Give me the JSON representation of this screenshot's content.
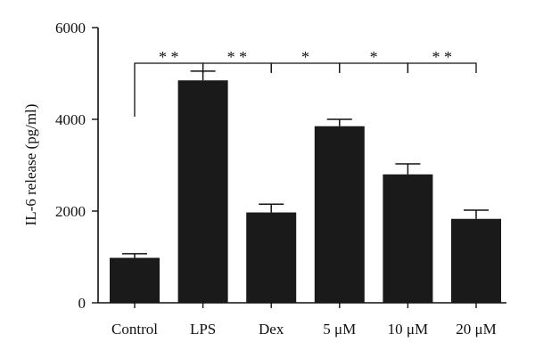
{
  "chart_data": {
    "type": "bar",
    "categories": [
      "Control",
      "LPS",
      "Dex",
      "5 μM",
      "10 μM",
      "20 μM"
    ],
    "values": [
      980,
      4850,
      1970,
      3850,
      2800,
      1830
    ],
    "errors": [
      90,
      200,
      180,
      150,
      230,
      190
    ],
    "ylabel": "IL-6 release (pg/ml)",
    "ylim": [
      0,
      6000
    ],
    "yticks": [
      0,
      2000,
      4000,
      6000
    ],
    "bar_color": "#1a1a1a",
    "significance": [
      {
        "from": "Control",
        "to": "LPS",
        "label": "* *"
      },
      {
        "from": "LPS",
        "to": "Dex",
        "label": "* *"
      },
      {
        "from": "Dex",
        "to": "5 μM",
        "label": "*"
      },
      {
        "from": "5 μM",
        "to": "10 μM",
        "label": "*"
      },
      {
        "from": "10 μM",
        "to": "20 μM",
        "label": "* *"
      }
    ]
  }
}
